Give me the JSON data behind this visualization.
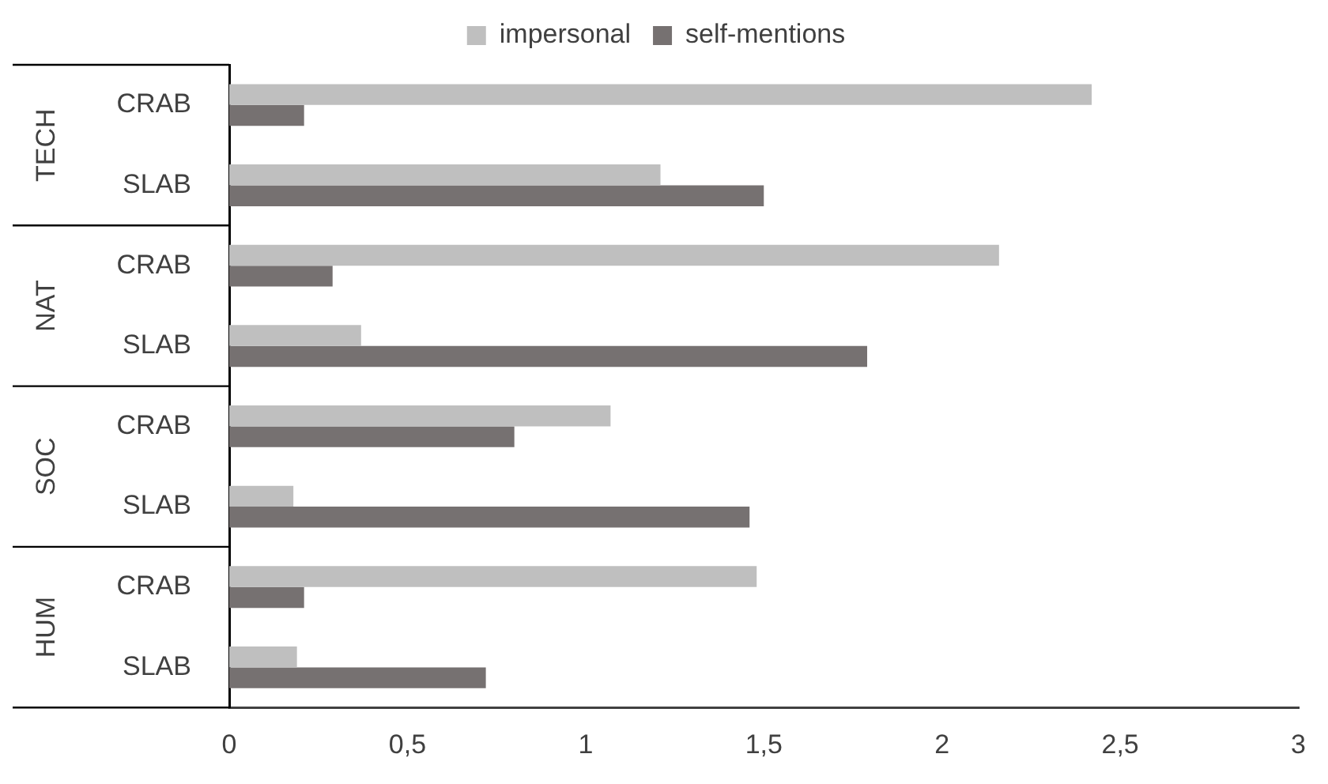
{
  "chart_data": {
    "type": "bar",
    "orientation": "horizontal",
    "categories": [
      "CRAB",
      "SLAB",
      "CRAB",
      "SLAB",
      "CRAB",
      "SLAB",
      "CRAB",
      "SLAB"
    ],
    "series": [
      {
        "name": "impersonal",
        "color": "#bfbfbf",
        "values": [
          2.42,
          1.21,
          2.16,
          0.37,
          1.07,
          0.18,
          1.48,
          0.19
        ]
      },
      {
        "name": "self-mentions",
        "color": "#767171",
        "values": [
          0.21,
          1.5,
          0.29,
          1.79,
          0.8,
          1.46,
          0.21,
          0.72
        ]
      }
    ],
    "xlim": [
      0,
      3
    ],
    "xticks": [
      0,
      {
        "value": 0.5,
        "label": "0,5"
      },
      1,
      {
        "value": 1.5,
        "label": "1,5"
      },
      2,
      {
        "value": 2.5,
        "label": "2,5"
      },
      3
    ],
    "annotations": [
      "TECH",
      "NAT",
      "SOC",
      "HUM"
    ],
    "grid": false,
    "legend": "top"
  }
}
